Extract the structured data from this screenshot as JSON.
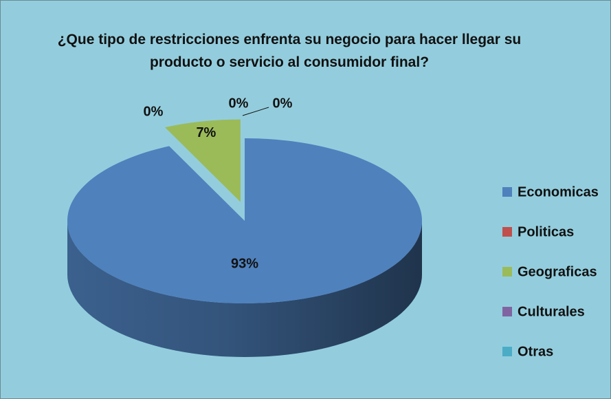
{
  "chart_data": {
    "type": "pie3d",
    "title": "¿Que tipo de restricciones enfrenta su negocio para hacer llegar su producto o servicio al consumidor final?",
    "categories": [
      "Economicas",
      "Politicas",
      "Geograficas",
      "Culturales",
      "Otras"
    ],
    "values": [
      93,
      0,
      7,
      0,
      0
    ],
    "value_labels": [
      "93%",
      "0%",
      "7%",
      "0%",
      "0%"
    ],
    "colors": [
      "#4f81bd",
      "#c0504d",
      "#9bbb59",
      "#8064a2",
      "#4bacc6"
    ],
    "legend": "right"
  }
}
